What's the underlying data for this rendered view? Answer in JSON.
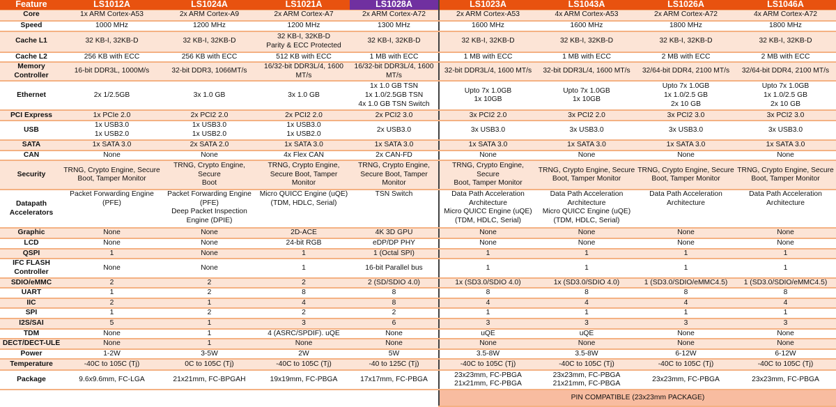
{
  "header": [
    "Feature",
    "LS1012A",
    "LS1024A",
    "LS1021A",
    "LS1028A",
    "LS1023A",
    "LS1043A",
    "LS1026A",
    "LS1046A"
  ],
  "colors": {
    "header_orange": "#e8520f",
    "header_purple": "#7030a0",
    "stripe": "#fce4d6",
    "border": "#f4b183",
    "pin_compatible": "#f8bca0",
    "divider": "#404040"
  },
  "rows": [
    {
      "feature": "Core",
      "values": [
        "1x ARM Cortex-A53",
        "2x ARM Cortex-A9",
        "2x ARM Cortex-A7",
        "2x ARM Cortex-A72",
        "2x ARM Cortex-A53",
        "4x ARM Cortex-A53",
        "2x ARM Cortex-A72",
        "4x ARM Cortex-A72"
      ]
    },
    {
      "feature": "Speed",
      "values": [
        "1000 MHz",
        "1200 MHz",
        "1200 MHz",
        "1300 MHz",
        "1600 MHz",
        "1600 MHz",
        "1800 MHz",
        "1800 MHz"
      ]
    },
    {
      "feature": "Cache L1",
      "values": [
        "32 KB-I, 32KB-D",
        "32 KB-I, 32KB-D",
        "32 KB-I, 32KB-D\nParity & ECC Protected",
        "32 KB-I, 32KB-D",
        "32 KB-I, 32KB-D",
        "32 KB-I, 32KB-D",
        "32 KB-I, 32KB-D",
        "32 KB-I, 32KB-D"
      ]
    },
    {
      "feature": "Cache L2",
      "values": [
        "256 KB with ECC",
        "256 KB with ECC",
        "512 KB with ECC",
        "1 MB with ECC",
        "1 MB with ECC",
        "1 MB with ECC",
        "2 MB with ECC",
        "2 MB with ECC"
      ]
    },
    {
      "feature": "Memory\nController",
      "values": [
        "16-bit DDR3L, 1000M/s",
        "32-bit DDR3, 1066MT/s",
        "16/32-bit DDR3L/4, 1600\nMT/s",
        "16/32-bit DDR3L/4, 1600\nMT/s",
        "32-bit DDR3L/4, 1600 MT/s",
        "32-bit DDR3L/4, 1600 MT/s",
        "32/64-bit DDR4, 2100 MT/s",
        "32/64-bit DDR4, 2100 MT/s"
      ]
    },
    {
      "feature": "Ethernet",
      "values": [
        "2x 1/2.5GB",
        "3x 1.0 GB",
        "3x 1.0 GB",
        "1x 1.0 GB TSN\n1x 1.0/2.5GB TSN\n4x 1.0 GB TSN Switch",
        "Upto 7x 1.0GB\n1x 10GB",
        "Upto 7x 1.0GB\n1x 10GB",
        "Upto 7x 1.0GB\n1x 1.0/2.5 GB\n2x 10 GB",
        "Upto 7x 1.0GB\n1x 1.0/2.5 GB\n2x 10 GB"
      ]
    },
    {
      "feature": "PCI Express",
      "values": [
        "1x PCIe 2.0",
        "2x PCI2 2.0",
        "2x PCI2 2.0",
        "2x PCI2 3.0",
        "3x PCI2 2.0",
        "3x PCI2 2.0",
        "3x PCI2 3.0",
        "3x PCI2 3.0"
      ]
    },
    {
      "feature": "USB",
      "values": [
        "1x USB3.0\n1x USB2.0",
        "1x USB3.0\n1x USB2.0",
        "1x USB3.0\n1x USB2.0",
        "2x USB3.0",
        "3x USB3.0",
        "3x USB3.0",
        "3x USB3.0",
        "3x USB3.0"
      ]
    },
    {
      "feature": "SATA",
      "values": [
        "1x SATA 3.0",
        "2x SATA 2.0",
        "1x SATA 3.0",
        "1x SATA 3.0",
        "1x SATA 3.0",
        "1x SATA 3.0",
        "1x SATA 3.0",
        "1x SATA 3.0"
      ]
    },
    {
      "feature": "CAN",
      "values": [
        "None",
        "None",
        "4x Flex CAN",
        "2x CAN-FD",
        "None",
        "None",
        "None",
        "None"
      ]
    },
    {
      "feature": "Security",
      "values": [
        "TRNG, Crypto Engine, Secure\nBoot, Tamper Monitor",
        "TRNG, Crypto Engine, Secure\nBoot",
        "TRNG, Crypto Engine,\nSecure Boot, Tamper\nMonitor",
        "TRNG, Crypto Engine,\nSecure Boot, Tamper\nMonitor",
        "TRNG, Crypto Engine, Secure\nBoot, Tamper Monitor",
        "TRNG, Crypto Engine, Secure\nBoot, Tamper Monitor",
        "TRNG, Crypto Engine, Secure\nBoot, Tamper Monitor",
        "TRNG, Crypto Engine, Secure\nBoot, Tamper Monitor"
      ]
    },
    {
      "feature": "Datapath\nAccelerators",
      "values": [
        "Packet Forwarding Engine\n(PFE)",
        "Packet Forwarding Engine\n(PFE)\nDeep Packet Inspection\nEngine (DPIE)",
        "Micro QUICC Engine (uQE)\n(TDM, HDLC, Serial)",
        "TSN Switch",
        "Data Path Acceleration\nArchitecture\nMicro QUICC Engine (uQE)\n(TDM, HDLC, Serial)",
        "Data Path Acceleration\nArchitecture\nMicro QUICC Engine (uQE)\n(TDM, HDLC, Serial)",
        "Data Path Acceleration\nArchitecture",
        "Data Path Acceleration\nArchitecture"
      ]
    },
    {
      "feature": "Graphic",
      "values": [
        "None",
        "None",
        "2D-ACE",
        "4K 3D GPU",
        "None",
        "None",
        "None",
        "None"
      ]
    },
    {
      "feature": "LCD",
      "values": [
        "None",
        "None",
        "24-bit RGB",
        "eDP/DP PHY",
        "None",
        "None",
        "None",
        "None"
      ]
    },
    {
      "feature": "QSPI",
      "values": [
        "1",
        "None",
        "1",
        "1 (Octal SPI)",
        "1",
        "1",
        "1",
        "1"
      ]
    },
    {
      "feature": "IFC FLASH\nController",
      "values": [
        "None",
        "None",
        "1",
        "16-bit Parallel bus",
        "1",
        "1",
        "1",
        "1"
      ]
    },
    {
      "feature": "SDIO/eMMC",
      "values": [
        "2",
        "2",
        "2",
        "2 (SD/SDIO 4.0)",
        "1x (SD3.0/SDIO 4.0)",
        "1x (SD3.0/SDIO 4.0)",
        "1 (SD3.0/SDIO/eMMC4.5)",
        "1 (SD3.0/SDIO/eMMC4.5)"
      ]
    },
    {
      "feature": "UART",
      "values": [
        "1",
        "2",
        "8",
        "8",
        "8",
        "8",
        "8",
        "8"
      ]
    },
    {
      "feature": "IIC",
      "values": [
        "2",
        "1",
        "4",
        "8",
        "4",
        "4",
        "4",
        "4"
      ]
    },
    {
      "feature": "SPI",
      "values": [
        "1",
        "2",
        "2",
        "2",
        "1",
        "1",
        "1",
        "1"
      ]
    },
    {
      "feature": "I2S/SAI",
      "values": [
        "5",
        "1",
        "3",
        "6",
        "3",
        "3",
        "3",
        "3"
      ]
    },
    {
      "feature": "TDM",
      "values": [
        "None",
        "1",
        "4 (ASRC/SPDIF). uQE",
        "None",
        "uQE",
        "uQE",
        "None",
        "None"
      ]
    },
    {
      "feature": "DECT/DECT-ULE",
      "values": [
        "None",
        "1",
        "None",
        "None",
        "None",
        "None",
        "None",
        "None"
      ]
    },
    {
      "feature": "Power",
      "values": [
        "1-2W",
        "3-5W",
        "2W",
        "5W",
        "3.5-8W",
        "3.5-8W",
        "6-12W",
        "6-12W"
      ]
    },
    {
      "feature": "Temperature",
      "values": [
        "-40C to 105C (Tj)",
        "0C to 105C (Tj)",
        "-40C to 105C (Tj)",
        "-40 to 125C (Tj)",
        "-40C to 105C (Tj)",
        "-40C to 105C (Tj)",
        "-40C to 105C (Tj)",
        "-40C to 105C (Tj)"
      ]
    },
    {
      "feature": "Package",
      "values": [
        "9.6x9.6mm, FC-LGA",
        "21x21mm, FC-BPGAH",
        "19x19mm, FC-PBGA",
        "17x17mm, FC-PBGA",
        "23x23mm, FC-PBGA\n21x21mm, FC-PBGA",
        "23x23mm, FC-PBGA\n21x21mm, FC-PBGA",
        "23x23mm, FC-PBGA",
        "23x23mm, FC-PBGA"
      ]
    }
  ],
  "pin_compatible_note": "PIN COMPATIBLE (23x23mm PACKAGE)"
}
